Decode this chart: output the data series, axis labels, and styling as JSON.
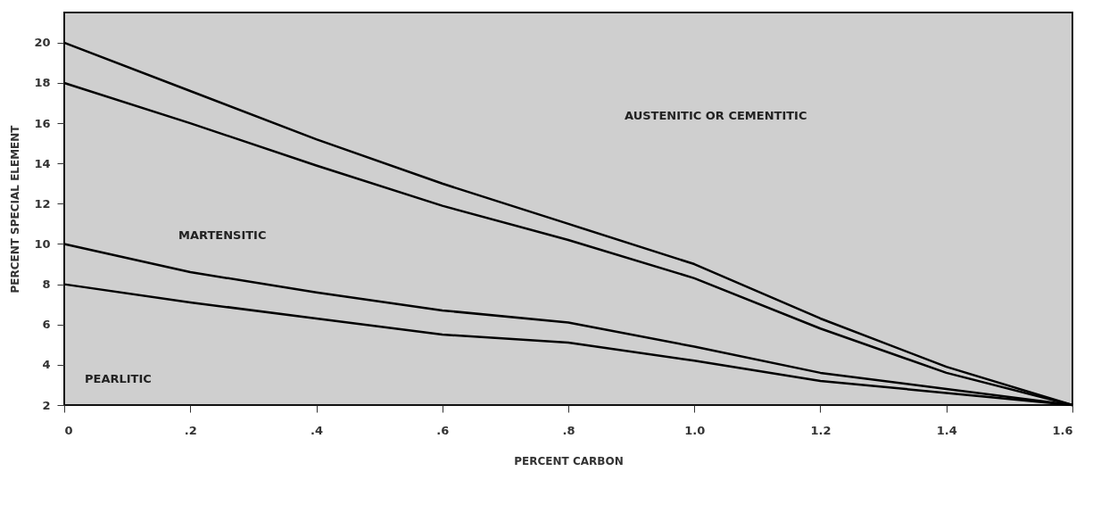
{
  "chart_data": {
    "type": "line",
    "xlabel": "PERCENT CARBON",
    "ylabel": "PERCENT SPECIAL ELEMENT",
    "x": [
      0,
      0.2,
      0.4,
      0.6,
      0.8,
      1.0,
      1.2,
      1.4,
      1.6
    ],
    "series": [
      {
        "color": "#000000",
        "values": [
          20,
          17.6,
          15.2,
          13.0,
          11.0,
          9.0,
          6.3,
          3.9,
          2
        ]
      },
      {
        "color": "#000000",
        "values": [
          18,
          16.0,
          13.9,
          11.9,
          10.2,
          8.3,
          5.8,
          3.6,
          2
        ]
      },
      {
        "color": "#000000",
        "values": [
          10,
          8.6,
          7.6,
          6.7,
          6.1,
          4.9,
          3.6,
          2.8,
          2
        ]
      },
      {
        "color": "#000000",
        "values": [
          8,
          7.1,
          6.3,
          5.5,
          5.1,
          4.2,
          3.2,
          2.6,
          2
        ]
      }
    ],
    "xlim": [
      0,
      1.6
    ],
    "xticks": [
      0,
      {
        "value": 0.2,
        "label": ".2"
      },
      {
        "value": 0.4,
        "label": ".4"
      },
      {
        "value": 0.6,
        "label": ".6"
      },
      {
        "value": 0.8,
        "label": ".8"
      },
      {
        "value": 1.0,
        "label": "1.0"
      },
      {
        "value": 1.2,
        "label": "1.2"
      },
      {
        "value": 1.4,
        "label": "1.4"
      },
      {
        "value": 1.6,
        "label": "1.6"
      }
    ],
    "ylim": [
      2,
      21.5
    ],
    "yticks": [
      2,
      4,
      6,
      8,
      10,
      12,
      14,
      16,
      18,
      20
    ],
    "grid": false,
    "marker": "none",
    "line_style": "solid",
    "annotations": [
      "AUSTENITIC OR CEMENTITIC",
      "MARTENSITIC",
      "PEARLITIC"
    ]
  }
}
